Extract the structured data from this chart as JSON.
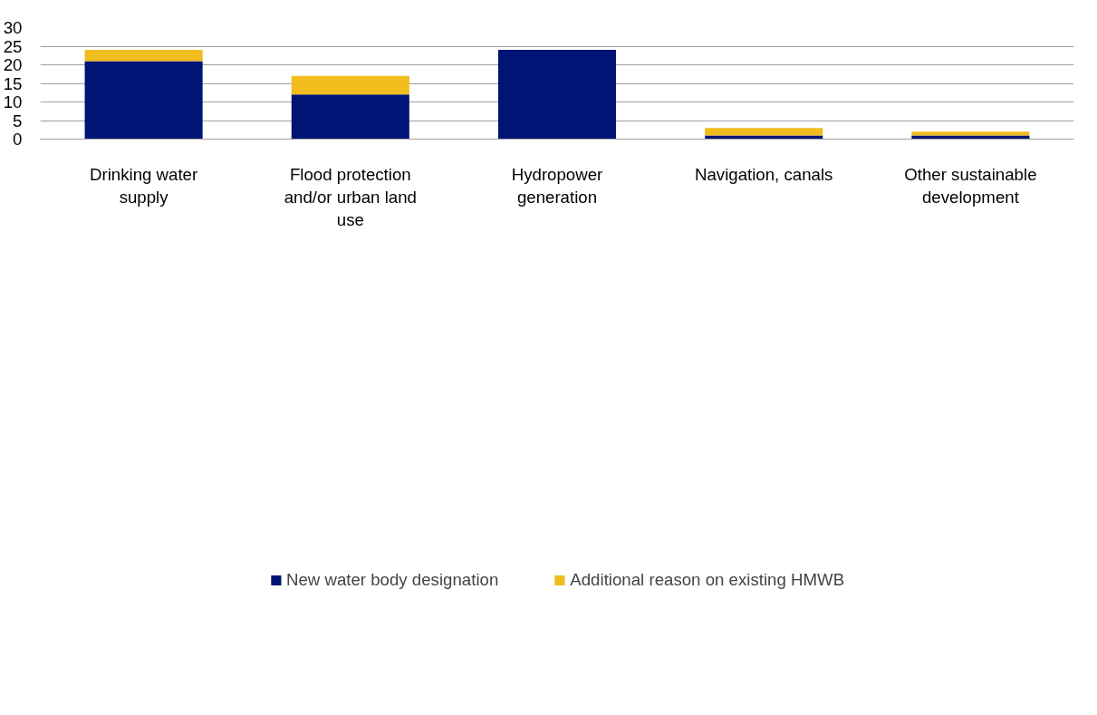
{
  "chart_data": {
    "type": "bar",
    "stacked": true,
    "categories": [
      "Drinking water supply",
      "Flood protection and/or urban land use",
      "Hydropower generation",
      "Navigation, canals",
      "Other sustainable development"
    ],
    "series": [
      {
        "name": "New water body designation",
        "color": "#001475",
        "values": [
          21,
          12,
          24,
          1,
          1
        ]
      },
      {
        "name": "Additional reason on existing HMWB",
        "color": "#f0bc1e",
        "values": [
          3,
          5,
          0,
          2,
          1
        ]
      }
    ],
    "ylim": [
      0,
      30
    ],
    "yticks": [
      0,
      5,
      10,
      15,
      20,
      25,
      30
    ],
    "grid": "y",
    "legend": "bottom"
  }
}
